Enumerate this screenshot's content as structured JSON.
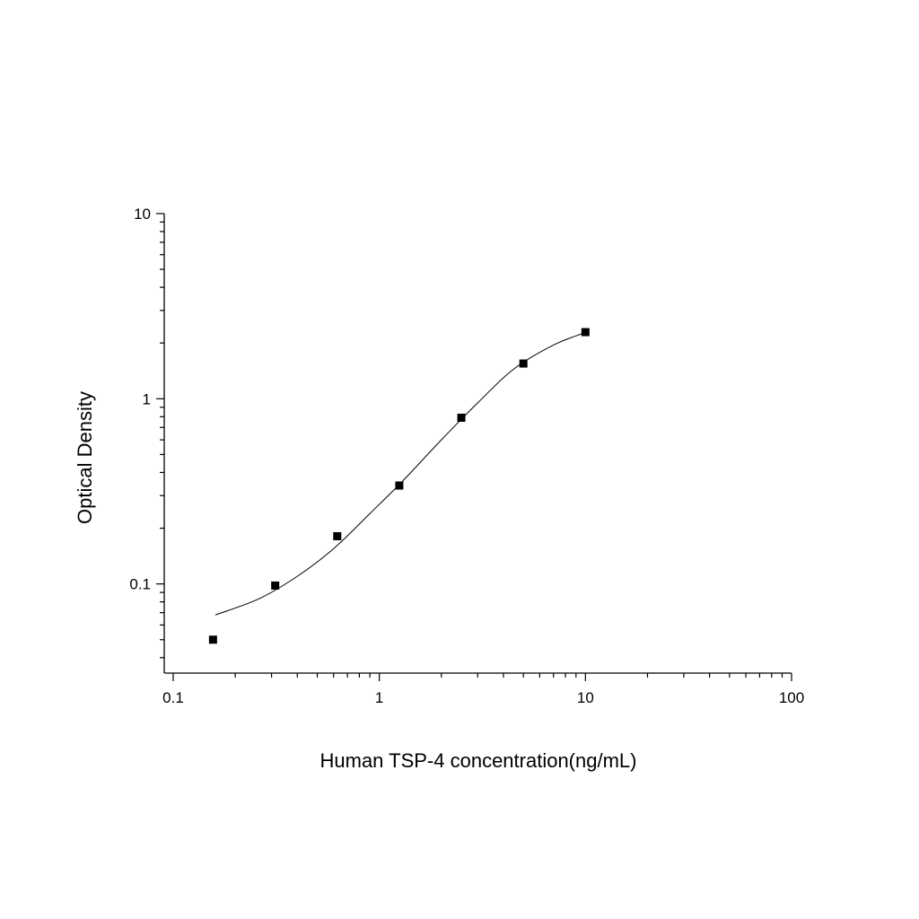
{
  "chart_data": {
    "type": "scatter",
    "title": "",
    "xlabel": "Human TSP-4 concentration(ng/mL)",
    "ylabel": "Optical Density",
    "x_scale": "log",
    "y_scale": "log",
    "xlim": [
      0.1,
      100
    ],
    "ylim": [
      0.033,
      10
    ],
    "x_ticks": [
      {
        "value": 0.1,
        "label": "0.1"
      },
      {
        "value": 1,
        "label": "1"
      },
      {
        "value": 10,
        "label": "10"
      },
      {
        "value": 100,
        "label": "100"
      }
    ],
    "y_ticks": [
      {
        "value": 0.1,
        "label": "0.1"
      },
      {
        "value": 1,
        "label": "1"
      },
      {
        "value": 10,
        "label": "10"
      }
    ],
    "grid": false,
    "legend": "none",
    "series": [
      {
        "marker": "square",
        "color": "#000000",
        "x": [
          0.156,
          0.3125,
          0.625,
          1.25,
          2.5,
          5,
          10
        ],
        "y": [
          0.05,
          0.098,
          0.181,
          0.34,
          0.79,
          1.55,
          2.29
        ]
      }
    ],
    "fit_curve": {
      "color": "#000000",
      "x": [
        0.16,
        0.26,
        0.4,
        0.6,
        0.9,
        1.3,
        2.0,
        3.0,
        4.5,
        7.0,
        10
      ],
      "y": [
        0.068,
        0.083,
        0.11,
        0.155,
        0.24,
        0.36,
        0.6,
        0.95,
        1.45,
        1.95,
        2.28
      ]
    }
  }
}
